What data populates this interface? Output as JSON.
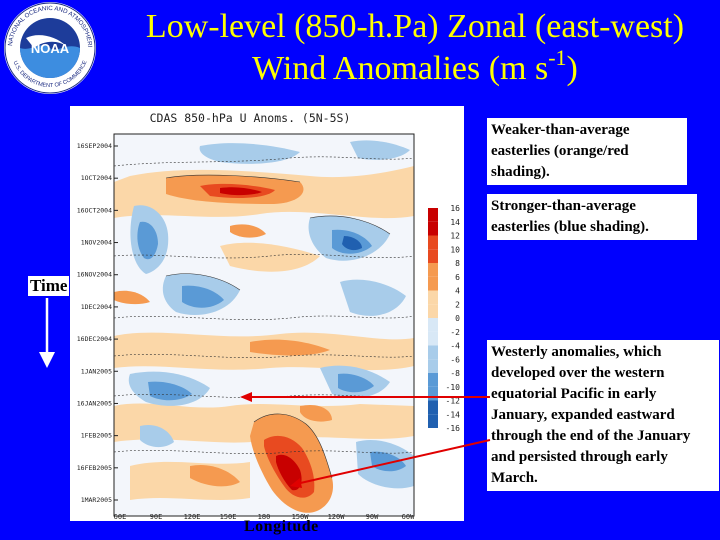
{
  "logo": {
    "agency_ring_text": "NATIONAL OCEANIC AND ATMOSPHERIC ADMINISTRATION",
    "dept_text": "U.S. DEPARTMENT OF COMMERCE",
    "center_text": "NOAA"
  },
  "title": {
    "line1": "Low-level (850-h.Pa) Zonal (east-west)",
    "line2_prefix": "Wind Anomalies (m s",
    "line2_sup": "-1",
    "line2_suffix": ")"
  },
  "plot": {
    "title": "CDAS 850-hPa U Anoms. (5N-5S)",
    "y_ticks": [
      "16SEP2004",
      "1OCT2004",
      "16OCT2004",
      "1NOV2004",
      "16NOV2004",
      "1DEC2004",
      "16DEC2004",
      "1JAN2005",
      "16JAN2005",
      "1FEB2005",
      "16FEB2005",
      "1MAR2005"
    ],
    "x_ticks": [
      "60E",
      "90E",
      "120E",
      "150E",
      "180",
      "150W",
      "120W",
      "90W",
      "60W"
    ],
    "colorbar_labels": [
      "16",
      "14",
      "12",
      "10",
      "8",
      "6",
      "4",
      "2",
      "0",
      "-2",
      "-4",
      "-6",
      "-8",
      "-10",
      "-12",
      "-14",
      "-16"
    ],
    "colors": {
      "strong_pos": "#c80000",
      "pos": "#e84a20",
      "weak_pos": "#f59a50",
      "faint_pos": "#fbd7a8",
      "faint_neg": "#d8e8f6",
      "weak_neg": "#a8ccea",
      "neg": "#5a9ad6",
      "strong_neg": "#2060b0"
    }
  },
  "annotations": {
    "weaker": "Weaker-than-average easterlies (orange/red shading).",
    "stronger": "Stronger-than-average easterlies (blue shading).",
    "westerly": "Westerly anomalies, which developed over the western equatorial Pacific in early January, expanded eastward through the end of the January and persisted through early March."
  },
  "axes": {
    "time_label": "Time",
    "longitude_label": "Longitude"
  },
  "accent_colors": {
    "background": "#0000fe",
    "title_text": "#ffff00",
    "arrow": "#e00000"
  }
}
